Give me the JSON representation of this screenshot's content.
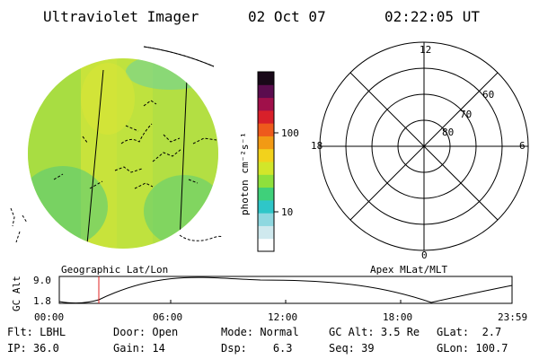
{
  "header": {
    "instrument": "Ultraviolet Imager",
    "date": "02 Oct 07",
    "time": "02:22:05 UT"
  },
  "image_panel": {
    "label": "Geographic Lat/Lon"
  },
  "colorbar": {
    "unit_label": "photon cm⁻²s⁻¹",
    "tick_labels": [
      "100",
      "10"
    ],
    "colors": [
      "#ffffff",
      "#cfe9ee",
      "#8fd8e0",
      "#2fc6c8",
      "#3fd07a",
      "#8ee03c",
      "#d2e62a",
      "#f2d21c",
      "#f29a14",
      "#ee5a1c",
      "#d8202a",
      "#a0104a",
      "#5a0c4e",
      "#180818"
    ]
  },
  "polar_plot": {
    "label": "Apex MLat/MLT",
    "mlt_labels": {
      "top": "12",
      "bottom": "0",
      "left": "18",
      "right": "6"
    },
    "lat_labels": [
      "60",
      "70",
      "80"
    ]
  },
  "altitude_plot": {
    "ylabel": "GC Alt",
    "ytick_labels": [
      "9.0",
      "1.8"
    ],
    "xtick_labels": [
      "00:00",
      "06:00",
      "12:00",
      "18:00",
      "23:59"
    ],
    "marker_color": "#e02020"
  },
  "status": {
    "row1": [
      {
        "key": "Flt:",
        "value": "LBHL"
      },
      {
        "key": "Door:",
        "value": "Open"
      },
      {
        "key": "Mode:",
        "value": "Normal"
      },
      {
        "key": "GC Alt:",
        "value": "3.5 Re"
      },
      {
        "key": "GLat:",
        "value": "2.7"
      }
    ],
    "row2": [
      {
        "key": "IP:",
        "value": "36.0"
      },
      {
        "key": "Gain:",
        "value": "14"
      },
      {
        "key": "Dsp:",
        "value": "6.3"
      },
      {
        "key": "Seq:",
        "value": "39"
      },
      {
        "key": "GLon:",
        "value": "100.7"
      }
    ]
  }
}
